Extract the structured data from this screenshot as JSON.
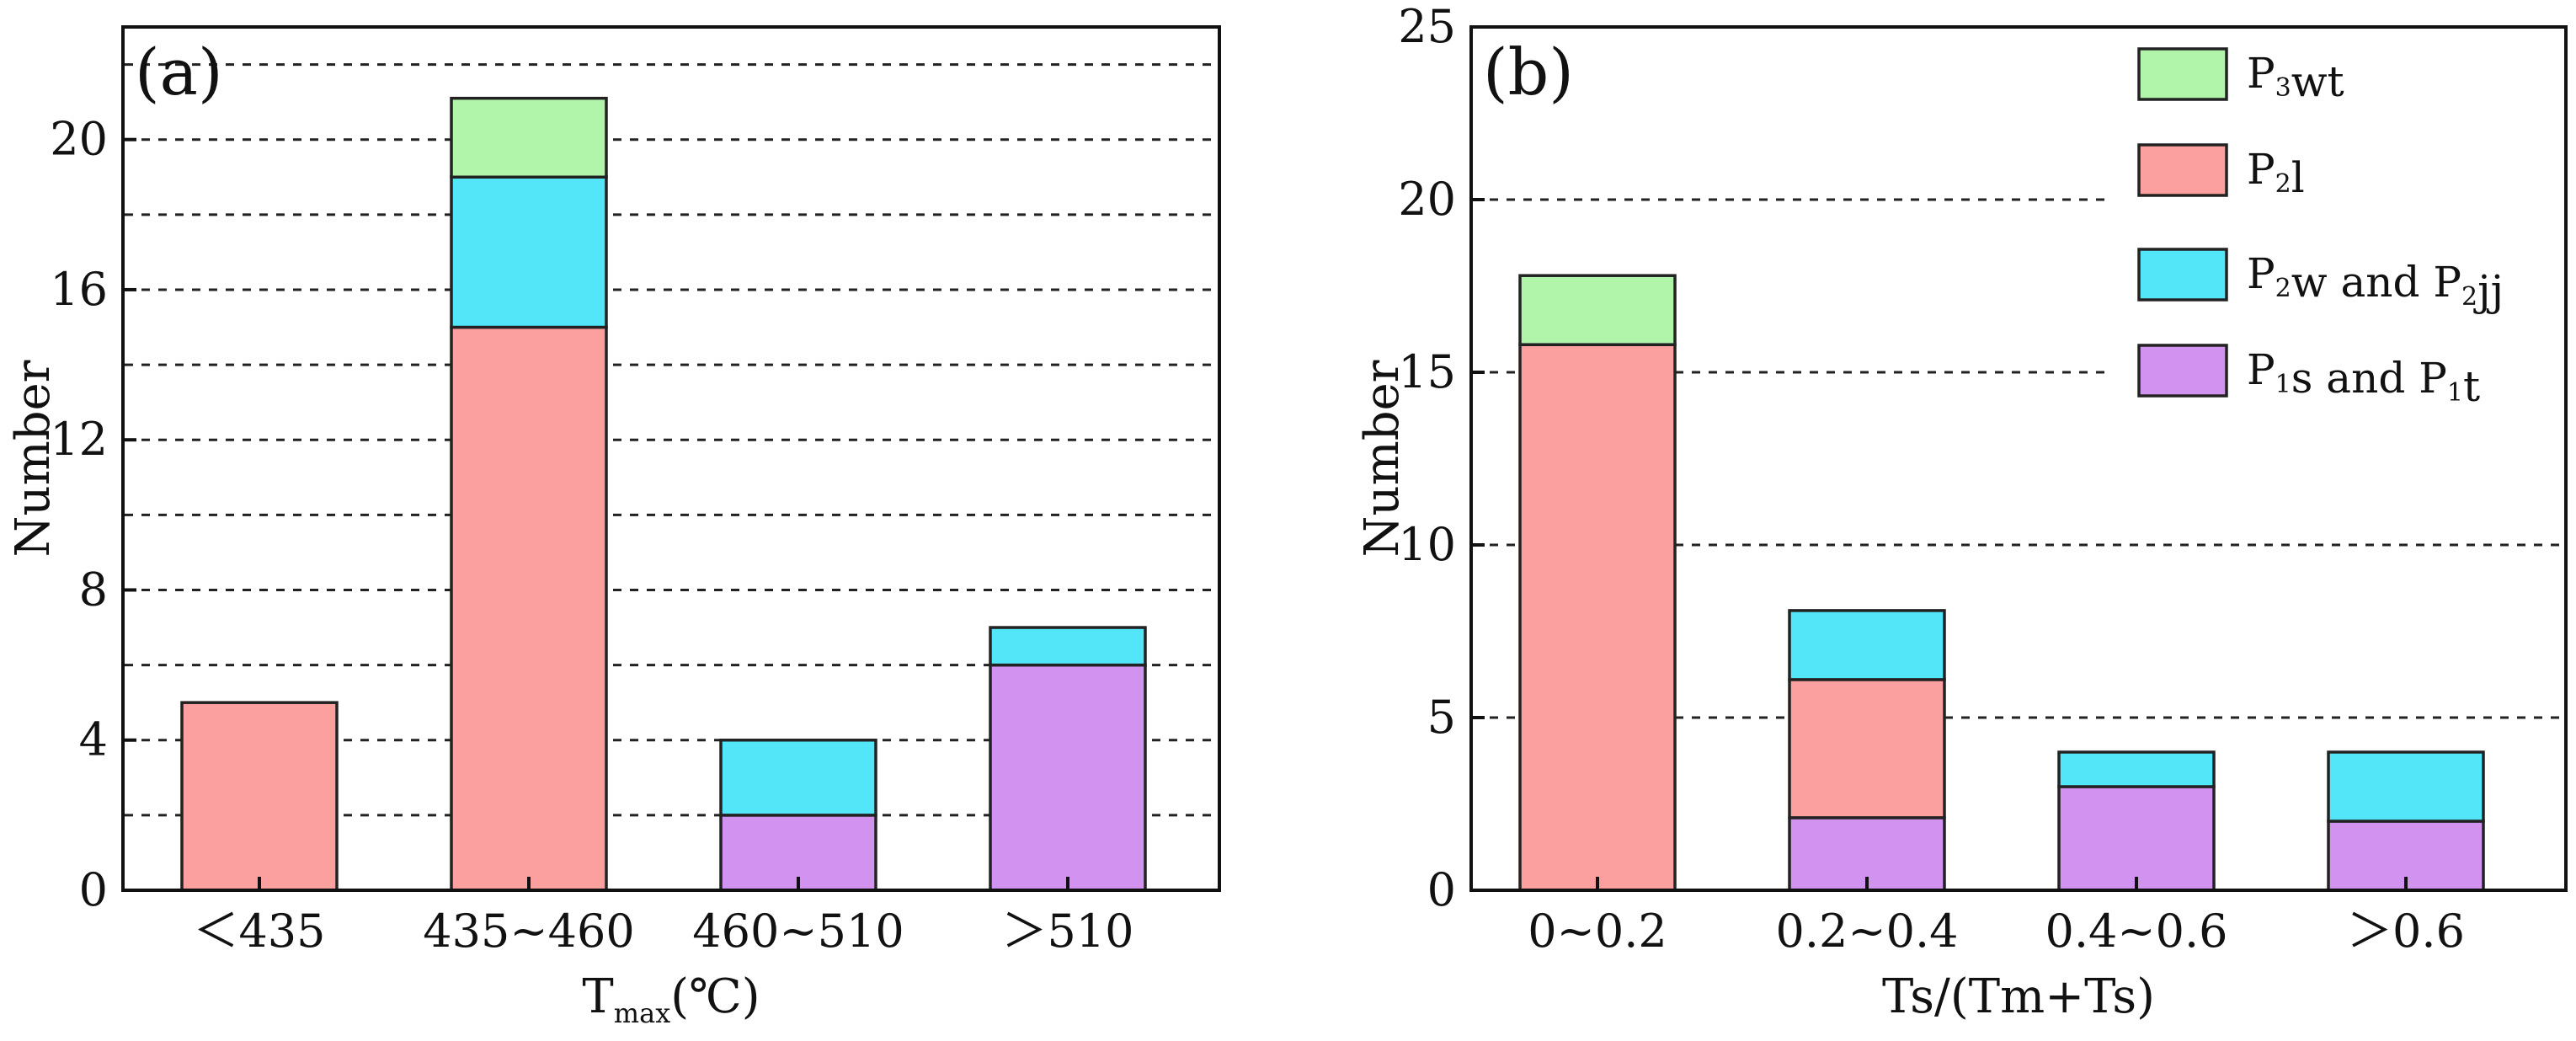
{
  "colors": {
    "P3wt": "#b1f5ab",
    "P2l": "#fc9f9f",
    "P2w_P2jj": "#52e6f8",
    "P1s_P1t": "#d193ef"
  },
  "chart_data": [
    {
      "type": "bar",
      "stacked": true,
      "panel_label": "(a)",
      "categories": [
        "＜435",
        "435~460",
        "460~510",
        "＞510"
      ],
      "xlabel": {
        "main": "T",
        "sub": "max",
        "rest": "(℃)"
      },
      "ylabel": "Number",
      "ylim": [
        0,
        23
      ],
      "yticks": [
        0,
        4,
        8,
        12,
        16,
        20
      ],
      "yticklabels": [
        "0",
        "4",
        "8",
        "12",
        "16",
        "20"
      ],
      "gridlines": [
        2,
        4,
        6,
        8,
        10,
        12,
        14,
        16,
        18,
        20,
        22
      ],
      "series": [
        {
          "name": "P1s and P1t",
          "key": "P1s_P1t",
          "values": [
            0,
            0,
            2,
            6
          ]
        },
        {
          "name": "P2l",
          "key": "P2l",
          "values": [
            5,
            15,
            0,
            0
          ]
        },
        {
          "name": "P2w and P2jj",
          "key": "P2w_P2jj",
          "values": [
            0,
            4,
            2,
            1
          ]
        },
        {
          "name": "P3wt",
          "key": "P3wt",
          "values": [
            0,
            2.1,
            0,
            0
          ]
        }
      ]
    },
    {
      "type": "bar",
      "stacked": true,
      "panel_label": "(b)",
      "categories": [
        "0~0.2",
        "0.2~0.4",
        "0.4~0.6",
        "＞0.6"
      ],
      "xlabel": {
        "main": "Ts/(Tm+Ts)",
        "sub": "",
        "rest": ""
      },
      "ylabel": "Number",
      "ylim": [
        0,
        25
      ],
      "yticks": [
        0,
        5,
        10,
        15,
        20,
        25
      ],
      "yticklabels": [
        "0",
        "5",
        "10",
        "15",
        "20",
        "25"
      ],
      "gridlines": [
        5,
        10,
        15,
        20
      ],
      "series": [
        {
          "name": "P1s and P1t",
          "key": "P1s_P1t",
          "values": [
            0,
            2.1,
            3,
            2
          ]
        },
        {
          "name": "P2l",
          "key": "P2l",
          "values": [
            15.8,
            4,
            0,
            0
          ]
        },
        {
          "name": "P2w and P2jj",
          "key": "P2w_P2jj",
          "values": [
            0,
            2,
            1,
            2
          ]
        },
        {
          "name": "P3wt",
          "key": "P3wt",
          "values": [
            2,
            0,
            0,
            0
          ]
        }
      ],
      "legend": {
        "position": "top-right",
        "entries": [
          {
            "key": "P3wt",
            "parts": [
              [
                "P",
                ""
              ],
              [
                "3",
                "sub"
              ],
              [
                "wt",
                ""
              ]
            ]
          },
          {
            "key": "P2l",
            "parts": [
              [
                "P",
                ""
              ],
              [
                "2",
                "sub"
              ],
              [
                "l",
                ""
              ]
            ]
          },
          {
            "key": "P2w_P2jj",
            "parts": [
              [
                "P",
                ""
              ],
              [
                "2",
                "sub"
              ],
              [
                "w and P",
                ""
              ],
              [
                "2",
                "sub"
              ],
              [
                "jj",
                ""
              ]
            ]
          },
          {
            "key": "P1s_P1t",
            "parts": [
              [
                "P",
                ""
              ],
              [
                "1",
                "sub"
              ],
              [
                "s and P",
                ""
              ],
              [
                "1",
                "sub"
              ],
              [
                "t",
                ""
              ]
            ]
          }
        ]
      }
    }
  ]
}
